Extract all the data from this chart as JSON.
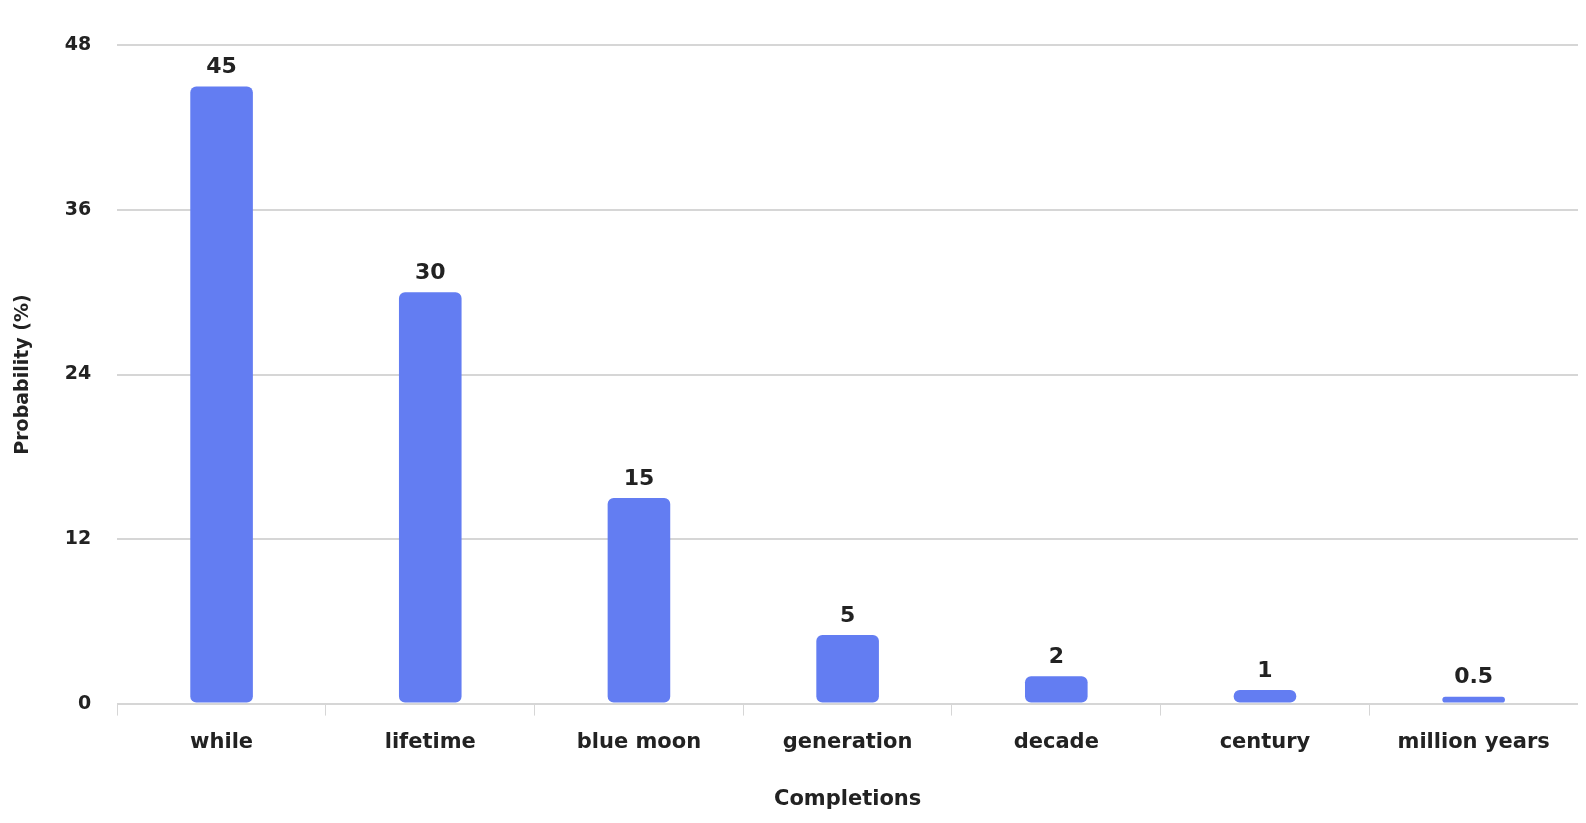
{
  "chart_data": {
    "type": "bar",
    "xlabel": "Completions",
    "ylabel": "Probability (%)",
    "categories": [
      "while",
      "lifetime",
      "blue moon",
      "generation",
      "decade",
      "century",
      "million years"
    ],
    "values": [
      45,
      30,
      15,
      5,
      2,
      1,
      0.5
    ],
    "color": "#637df2",
    "ylim": [
      0,
      48
    ],
    "yticks": [
      0,
      12,
      24,
      36,
      48
    ],
    "grid": "y",
    "legend": false,
    "data_labels": true
  }
}
